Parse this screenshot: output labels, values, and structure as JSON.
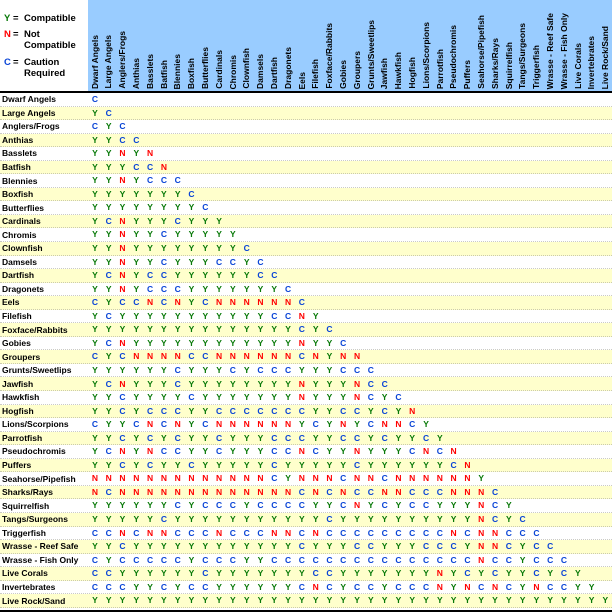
{
  "legend": {
    "separator": "=",
    "items": [
      {
        "symbol": "Y",
        "meaning": "Compatible"
      },
      {
        "symbol": "N",
        "meaning": "Not Compatible"
      },
      {
        "symbol": "C",
        "meaning": "Caution Required"
      }
    ]
  },
  "colors": {
    "header_bg": "#99CCFF",
    "stripe": "#FFFFCC",
    "row_bg": "#FFFFFF",
    "separator_line": "#000000",
    "symbol": {
      "Y": "#067806",
      "N": "#FF0000",
      "C": "#0944D6"
    }
  },
  "chart_data": {
    "type": "table",
    "title": "",
    "legend_position": "top-left",
    "symbol_meanings": {
      "Y": "Compatible",
      "N": "Not Compatible",
      "C": "Caution Required"
    },
    "categories": [
      "Dwarf Angels",
      "Large Angels",
      "Anglers/Frogs",
      "Anthias",
      "Basslets",
      "Batfish",
      "Blennies",
      "Boxfish",
      "Butterflies",
      "Cardinals",
      "Chromis",
      "Clownfish",
      "Damsels",
      "Dartfish",
      "Dragonets",
      "Eels",
      "Filefish",
      "Foxface/Rabbits",
      "Gobies",
      "Groupers",
      "Grunts/Sweetlips",
      "Jawfish",
      "Hawkfish",
      "Hogfish",
      "Lions/Scorpions",
      "Parrotfish",
      "Pseudochromis",
      "Puffers",
      "Seahorse/Pipefish",
      "Sharks/Rays",
      "Squirrelfish",
      "Tangs/Surgeons",
      "Triggerfish",
      "Wrasse - Reef Safe",
      "Wrasse - Fish Only",
      "Live Corals",
      "Invertebrates",
      "Live Rock/Sand"
    ],
    "matrix": [
      "C",
      "YC",
      "CYC",
      "YYCC",
      "YYNYN",
      "YYYCCN",
      "YYNYCCC",
      "YYYYYYYC",
      "YYYYYYYYC",
      "YCNYYYCYYY",
      "YYNYYCYYYYY",
      "YYNYYYYYYYYC",
      "YYNYYCYYYCCYC",
      "YCNYCCYYYYYYCC",
      "YYNYCCCYYYYYYYC",
      "CYCCNCNYCNNNNNNC",
      "YCYYYYYYYYYYYCCNY",
      "YYYYYYYYYYYYYYYCYC",
      "YCNYYYYYYYYYYYYNYYC",
      "CYCNNNNCCNNNNNNCNYNN",
      "YYYYYYCYYYCYCCCYYYCCC",
      "YCNYYYCYYYYYYYYNYYYNCC",
      "YYCYYYYCYYYYYYYNYYYNCYC",
      "YYCYCCCYYCCCCCCCYYCCYCYN",
      "CYYCNCNYCNNNNNNYCYNYCNNCY",
      "YYCYCYCYYCYYYCCCYYCCYCYYCY",
      "YCNYNCCYYCYYYCCNCYYNYYYCNCN",
      "YYCYCYYCYYYYYCYYYYYCYYYYYYCN",
      "NNNNNNNNNNNNNCYNNNCNNCNNNNNNY",
      "NCNNNNNNNNNNNNNCNCNCCNNCCCNNNC",
      "YYYYYYCYCCCYCCCCYYCNYCYCCYYYNCY",
      "YYYYYCYYYYYYYYYYYCYYYYYYYYYYNCYC",
      "CCNCNNCCCNCCCNNCNCCCCCCCCCNCNNCCC",
      "YYCYYYYYYYYYYYYCYYYCCYYYCCCYNNCYCC",
      "CYCCCCCYCCCYYCCCCCCCCCCCCCCCNCCYCCC",
      "CCYYYYYYCYYYYYYYCCYYYYYYYNYCYCYYCYCY",
      "CCCYYCYCCYYYYYYCNCYCCYCCCNYNCNCYNCCYY",
      "YYYYYYYYYYYYYYYYYYYYYYYYYYYYYYYYYYYYYY"
    ]
  }
}
